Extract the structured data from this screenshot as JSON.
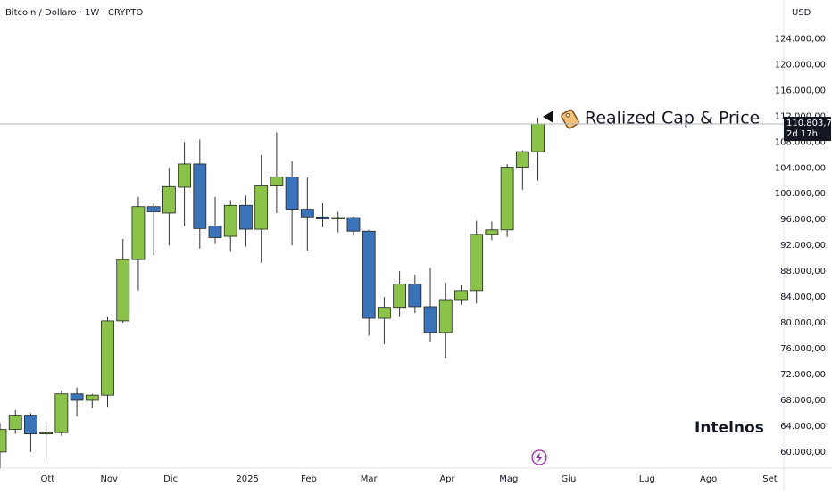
{
  "chart_data": {
    "type": "candlestick",
    "title": "Bitcoin / Dollaro · 1W · CRYPTO",
    "currency": "USD",
    "x": [
      0,
      1,
      2,
      3,
      4,
      5,
      6,
      7,
      8,
      9,
      10,
      11,
      12,
      13,
      14,
      15,
      16,
      17,
      18,
      19,
      20,
      21,
      22,
      23,
      24,
      25,
      26,
      27,
      28,
      29,
      30,
      31,
      32,
      33,
      34,
      35
    ],
    "open": [
      60000,
      63500,
      65700,
      62800,
      63000,
      69000,
      68000,
      68800,
      80300,
      89800,
      98000,
      97000,
      101000,
      104600,
      95000,
      93400,
      98200,
      94500,
      101200,
      102600,
      97600,
      96400,
      96100,
      96300,
      94200,
      80700,
      82400,
      86000,
      82500,
      78500,
      83600,
      85000,
      93700,
      94400,
      104100,
      106500
    ],
    "high": [
      64500,
      66500,
      66000,
      64500,
      69500,
      70000,
      69000,
      81000,
      93000,
      99500,
      98500,
      104000,
      108000,
      108400,
      99500,
      99000,
      99700,
      106000,
      109500,
      105000,
      102500,
      98500,
      97200,
      96500,
      94400,
      84000,
      88000,
      87500,
      88500,
      86200,
      85800,
      95800,
      95700,
      104600,
      106700,
      111800
    ],
    "low": [
      57500,
      62800,
      60000,
      59000,
      62500,
      65500,
      66800,
      67000,
      80000,
      85000,
      90500,
      92000,
      95000,
      91500,
      92200,
      91000,
      91800,
      89300,
      97000,
      92000,
      91200,
      94800,
      94000,
      93500,
      78000,
      76700,
      81000,
      81500,
      77000,
      74500,
      82800,
      83000,
      92800,
      93300,
      100600,
      102000
    ],
    "close": [
      63500,
      65700,
      62800,
      63000,
      69000,
      68000,
      68800,
      80300,
      89800,
      98000,
      97200,
      101100,
      104600,
      94600,
      93200,
      98200,
      94500,
      101200,
      102600,
      97600,
      96400,
      96100,
      96300,
      94200,
      80700,
      82400,
      86000,
      82500,
      78500,
      83600,
      85000,
      93700,
      94400,
      104100,
      106500,
      110803.76
    ],
    "up_color": "#8bc34a",
    "down_color": "#3b73b9",
    "xlim": [
      0,
      51
    ],
    "xticks": [
      {
        "value": 3.1,
        "label": "Ott"
      },
      {
        "value": 7.1,
        "label": "Nov"
      },
      {
        "value": 11.1,
        "label": "Dic"
      },
      {
        "value": 16.1,
        "label": "2025"
      },
      {
        "value": 20.1,
        "label": "Feb"
      },
      {
        "value": 24.0,
        "label": "Mar"
      },
      {
        "value": 29.1,
        "label": "Apr"
      },
      {
        "value": 33.1,
        "label": "Mag"
      },
      {
        "value": 37.0,
        "label": "Giu"
      },
      {
        "value": 42.1,
        "label": "Lug"
      },
      {
        "value": 46.1,
        "label": "Ago"
      },
      {
        "value": 50.1,
        "label": "Set"
      }
    ],
    "ylim": [
      57500,
      130000
    ],
    "yticks": [
      {
        "value": 60000,
        "label": "60.000,00"
      },
      {
        "value": 64000,
        "label": "64.000,00"
      },
      {
        "value": 68000,
        "label": "68.000,00"
      },
      {
        "value": 72000,
        "label": "72.000,00"
      },
      {
        "value": 76000,
        "label": "76.000,00"
      },
      {
        "value": 80000,
        "label": "80.000,00"
      },
      {
        "value": 84000,
        "label": "84.000,00"
      },
      {
        "value": 88000,
        "label": "88.000,00"
      },
      {
        "value": 92000,
        "label": "92.000,00"
      },
      {
        "value": 96000,
        "label": "96.000,00"
      },
      {
        "value": 100000,
        "label": "100.000,00"
      },
      {
        "value": 104000,
        "label": "104.000,00"
      },
      {
        "value": 108000,
        "label": "108.000,00"
      },
      {
        "value": 112000,
        "label": "112.000,00"
      },
      {
        "value": 116000,
        "label": "116.000,00"
      },
      {
        "value": 120000,
        "label": "120.000,00"
      },
      {
        "value": 124000,
        "label": "124.000,00"
      }
    ],
    "last_price": {
      "value": 110803.76,
      "label": "110.803,76"
    },
    "countdown": "2d 17h",
    "annotation": "Realized Cap & Price",
    "watermark": "Intelnos"
  }
}
